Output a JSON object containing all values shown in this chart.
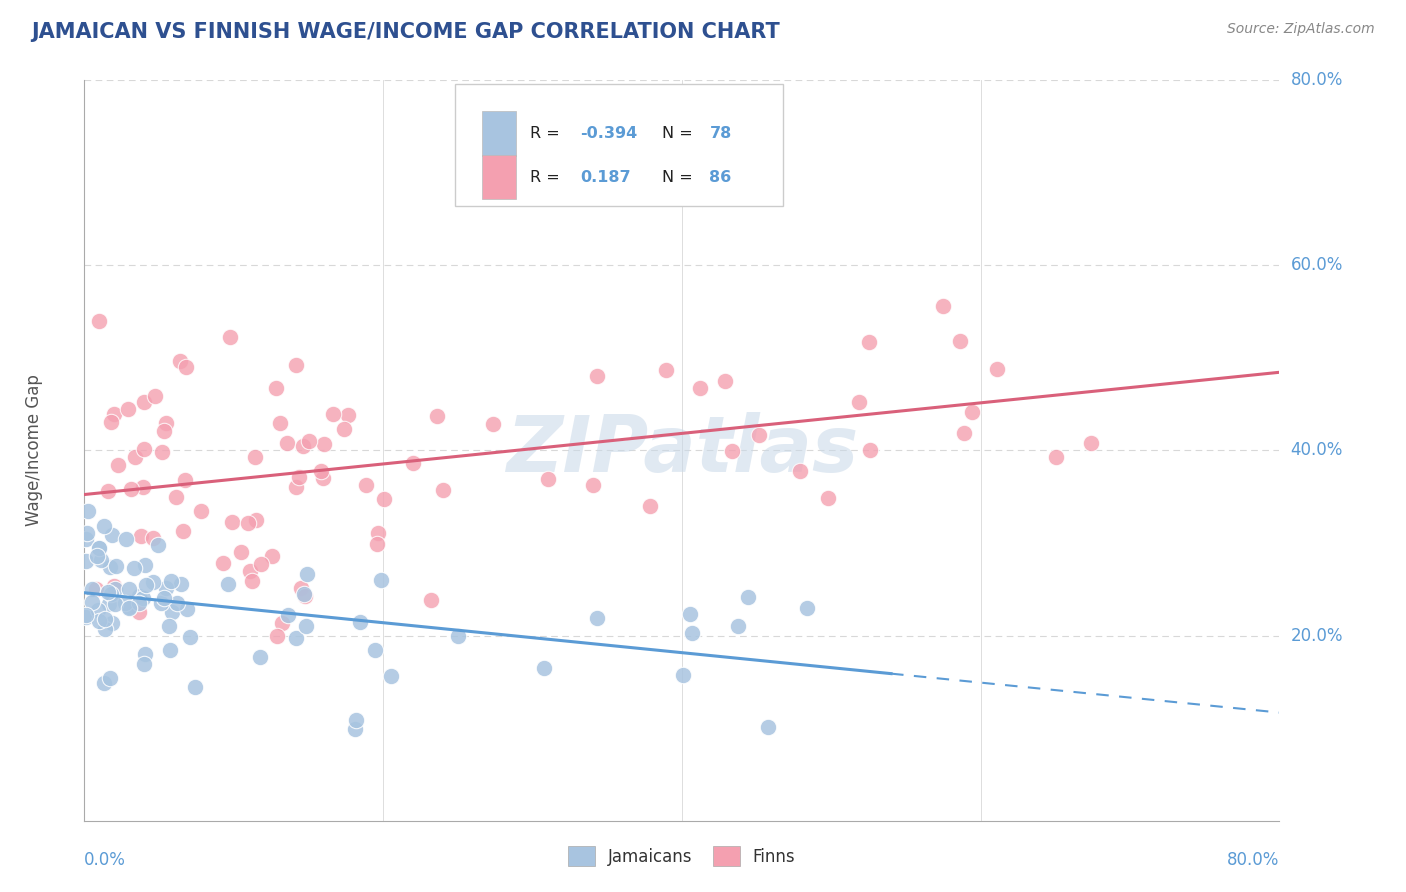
{
  "title": "JAMAICAN VS FINNISH WAGE/INCOME GAP CORRELATION CHART",
  "source": "Source: ZipAtlas.com",
  "ylabel": "Wage/Income Gap",
  "xmin": 0.0,
  "xmax": 0.8,
  "ymin": 0.0,
  "ymax": 0.8,
  "jamaican_R": -0.394,
  "jamaican_N": 78,
  "finn_R": 0.187,
  "finn_N": 86,
  "jamaican_color": "#a8c4e0",
  "finn_color": "#f4a0b0",
  "jamaican_line_color": "#5b9bd5",
  "finn_line_color": "#d9607a",
  "title_color": "#2e5090",
  "source_color": "#888888",
  "watermark_color": "#c8d8e8",
  "background_color": "#ffffff",
  "grid_color": "#d8d8d8",
  "tick_label_color": "#5b9bd5",
  "legend_value_color": "#5b9bd5",
  "legend_box_edge": "#cccccc"
}
